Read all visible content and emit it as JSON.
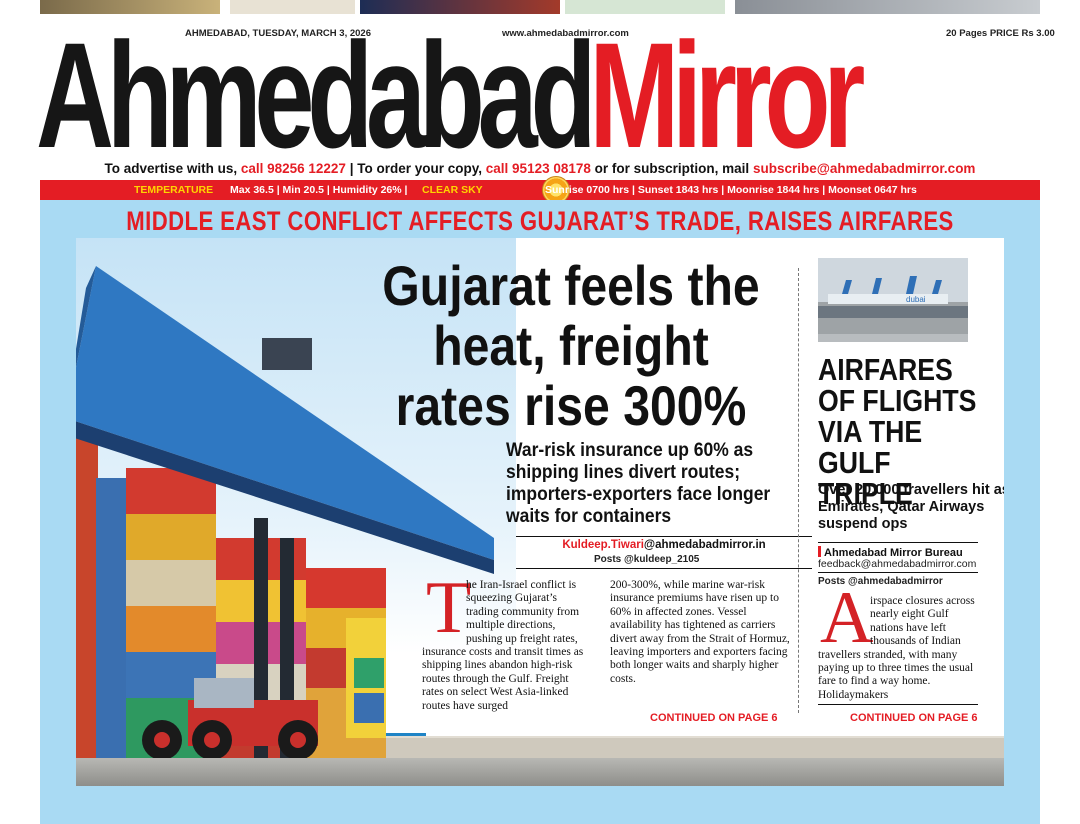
{
  "masthead": {
    "dateline": "AHMEDABAD, TUESDAY, MARCH 3, 2026",
    "website": "www.ahmedabadmirror.com",
    "price": "20 Pages PRICE Rs 3.00",
    "title_part1": "Ahmedabad",
    "title_part2": "Mirror"
  },
  "adline": {
    "t1": "To advertise with us,",
    "phone1": "call 98256 12227",
    "t2": "| To order your copy,",
    "phone2": "call 95123 08178",
    "t3": "or for subscription, mail",
    "email": "subscribe@ahmedabadmirror.com"
  },
  "weather": {
    "temperature_label": "TEMPERATURE",
    "stats": "Max 36.5 | Min 20.5 | Humidity 26% |",
    "condition": "CLEAR SKY",
    "times": "Sunrise 0700 hrs | Sunset 1843 hrs | Moonrise 1844 hrs | Moonset 0647 hrs",
    "icon": "sun-icon"
  },
  "kicker": "MIDDLE EAST CONFLICT AFFECTS GUJARAT’S TRADE, RAISES AIRFARES",
  "main_story": {
    "headline": "Gujarat feels the heat, freight rates rise 300%",
    "deck": "War-risk insurance up 60% as shipping lines divert routes; importers-exporters face longer waits for containers",
    "byline_name": "Kuldeep.Tiwari",
    "byline_email": "@ahmedabadmirror.in",
    "posts": "Posts @kuldeep_2105",
    "dropcap": "T",
    "col1": "he Iran-Israel conflict is squeezing Gujarat’s trading community from multiple directions, pushing up freight rates, insurance costs and transit times as shipping lines abandon high-risk routes through the Gulf. Freight rates on select West Asia-linked routes have surged",
    "col2": "200-300%, while marine war-risk insurance premiums have risen up to 60% in affected zones. Vessel availability has tightened as carriers divert away from the Strait of Hormuz, leaving importers and exporters facing both longer waits and sharply higher costs.",
    "continued": "CONTINUED ON PAGE 6"
  },
  "side_story": {
    "headline": "AIRFARES OF FLIGHTS VIA THE GULF TRIPLE",
    "deck": "Over 20,000 travellers hit as Emirates, Qatar Airways suspend ops",
    "bureau": "Ahmedabad Mirror Bureau",
    "email": "feedback@ahmedabadmirror.com",
    "posts": "Posts @ahmedabadmirror",
    "dropcap": "A",
    "body": "irspace closures across nearly eight Gulf nations have left thousands of Indian travellers stranded, with many paying up to three times the usual fare to find a way home. Holidaymakers",
    "continued": "CONTINUED ON PAGE 6",
    "photo_plane_text": "dubai"
  },
  "colors": {
    "brand_red": "#e41d24",
    "sky_blue": "#a9daf3",
    "container_blue": "#2f78c2"
  }
}
